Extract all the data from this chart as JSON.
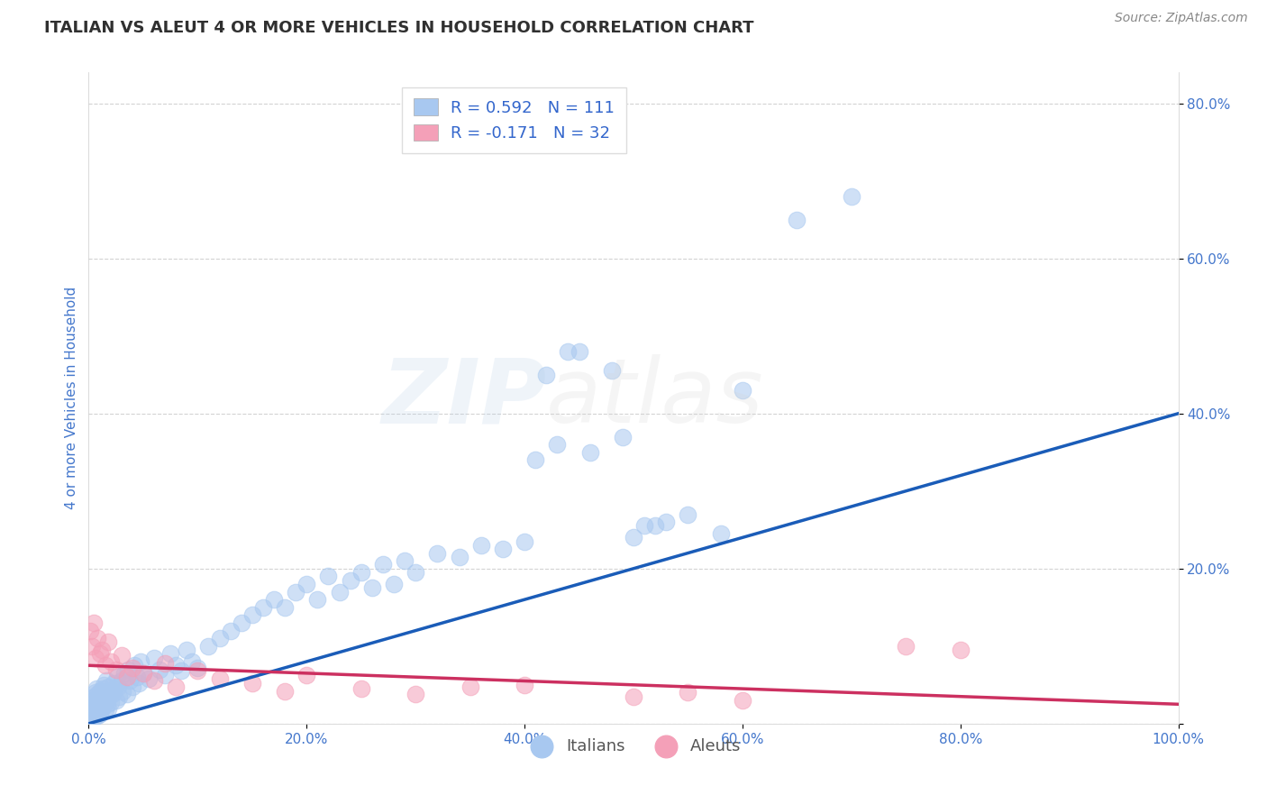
{
  "title": "ITALIAN VS ALEUT 4 OR MORE VEHICLES IN HOUSEHOLD CORRELATION CHART",
  "source": "Source: ZipAtlas.com",
  "ylabel": "4 or more Vehicles in Household",
  "xlim": [
    0,
    1.0
  ],
  "ylim": [
    0,
    0.84
  ],
  "xticks": [
    0.0,
    0.2,
    0.4,
    0.6,
    0.8,
    1.0
  ],
  "xtick_labels": [
    "0.0%",
    "20.0%",
    "40.0%",
    "60.0%",
    "80.0%",
    "100.0%"
  ],
  "yticks": [
    0.0,
    0.2,
    0.4,
    0.6,
    0.8
  ],
  "ytick_labels": [
    "",
    "20.0%",
    "40.0%",
    "60.0%",
    "80.0%"
  ],
  "R_italian": 0.592,
  "N_italian": 111,
  "R_aleut": -0.171,
  "N_aleut": 32,
  "italian_color": "#a8c8f0",
  "aleut_color": "#f4a0b8",
  "line_italian_color": "#1a5cb8",
  "line_aleut_color": "#cc3060",
  "background_color": "#ffffff",
  "grid_color": "#c8c8c8",
  "title_color": "#303030",
  "axis_label_color": "#4477cc",
  "tick_color": "#4477cc",
  "legend_R_color": "#3366cc",
  "figsize": [
    14.06,
    8.92
  ],
  "dpi": 100,
  "italian_x": [
    0.002,
    0.003,
    0.003,
    0.004,
    0.004,
    0.005,
    0.005,
    0.005,
    0.006,
    0.006,
    0.006,
    0.007,
    0.007,
    0.007,
    0.008,
    0.008,
    0.008,
    0.009,
    0.009,
    0.01,
    0.01,
    0.01,
    0.011,
    0.011,
    0.012,
    0.012,
    0.013,
    0.013,
    0.014,
    0.014,
    0.015,
    0.015,
    0.016,
    0.016,
    0.017,
    0.018,
    0.018,
    0.019,
    0.02,
    0.021,
    0.022,
    0.023,
    0.024,
    0.025,
    0.026,
    0.027,
    0.028,
    0.03,
    0.031,
    0.033,
    0.035,
    0.036,
    0.038,
    0.04,
    0.042,
    0.044,
    0.046,
    0.048,
    0.05,
    0.055,
    0.06,
    0.065,
    0.07,
    0.075,
    0.08,
    0.085,
    0.09,
    0.095,
    0.1,
    0.11,
    0.12,
    0.13,
    0.14,
    0.15,
    0.16,
    0.17,
    0.18,
    0.19,
    0.2,
    0.21,
    0.22,
    0.23,
    0.24,
    0.25,
    0.26,
    0.27,
    0.28,
    0.29,
    0.3,
    0.32,
    0.34,
    0.36,
    0.38,
    0.4,
    0.41,
    0.43,
    0.45,
    0.48,
    0.5,
    0.52,
    0.42,
    0.44,
    0.46,
    0.49,
    0.51,
    0.53,
    0.55,
    0.58,
    0.6,
    0.65,
    0.7
  ],
  "italian_y": [
    0.02,
    0.015,
    0.025,
    0.01,
    0.03,
    0.008,
    0.018,
    0.035,
    0.012,
    0.022,
    0.04,
    0.016,
    0.028,
    0.045,
    0.01,
    0.02,
    0.038,
    0.015,
    0.032,
    0.012,
    0.025,
    0.042,
    0.018,
    0.035,
    0.02,
    0.038,
    0.022,
    0.045,
    0.025,
    0.05,
    0.018,
    0.04,
    0.03,
    0.055,
    0.025,
    0.02,
    0.048,
    0.035,
    0.028,
    0.042,
    0.038,
    0.052,
    0.045,
    0.03,
    0.06,
    0.048,
    0.035,
    0.055,
    0.042,
    0.065,
    0.038,
    0.07,
    0.055,
    0.048,
    0.075,
    0.06,
    0.052,
    0.08,
    0.065,
    0.058,
    0.085,
    0.07,
    0.062,
    0.09,
    0.075,
    0.068,
    0.095,
    0.08,
    0.072,
    0.1,
    0.11,
    0.12,
    0.13,
    0.14,
    0.15,
    0.16,
    0.15,
    0.17,
    0.18,
    0.16,
    0.19,
    0.17,
    0.185,
    0.195,
    0.175,
    0.205,
    0.18,
    0.21,
    0.195,
    0.22,
    0.215,
    0.23,
    0.225,
    0.235,
    0.34,
    0.36,
    0.48,
    0.455,
    0.24,
    0.255,
    0.45,
    0.48,
    0.35,
    0.37,
    0.255,
    0.26,
    0.27,
    0.245,
    0.43,
    0.65,
    0.68
  ],
  "aleut_x": [
    0.001,
    0.003,
    0.005,
    0.006,
    0.008,
    0.01,
    0.012,
    0.015,
    0.018,
    0.02,
    0.025,
    0.03,
    0.035,
    0.04,
    0.05,
    0.06,
    0.07,
    0.08,
    0.1,
    0.12,
    0.15,
    0.18,
    0.2,
    0.25,
    0.3,
    0.35,
    0.4,
    0.5,
    0.55,
    0.6,
    0.75,
    0.8
  ],
  "aleut_y": [
    0.12,
    0.1,
    0.13,
    0.085,
    0.11,
    0.09,
    0.095,
    0.075,
    0.105,
    0.08,
    0.07,
    0.088,
    0.06,
    0.072,
    0.065,
    0.055,
    0.078,
    0.048,
    0.068,
    0.058,
    0.052,
    0.042,
    0.062,
    0.045,
    0.038,
    0.048,
    0.05,
    0.035,
    0.04,
    0.03,
    0.1,
    0.095
  ],
  "line_it_x0": 0.0,
  "line_it_y0": 0.0,
  "line_it_x1": 1.0,
  "line_it_y1": 0.4,
  "line_al_x0": 0.0,
  "line_al_y0": 0.075,
  "line_al_x1": 1.0,
  "line_al_y1": 0.025
}
